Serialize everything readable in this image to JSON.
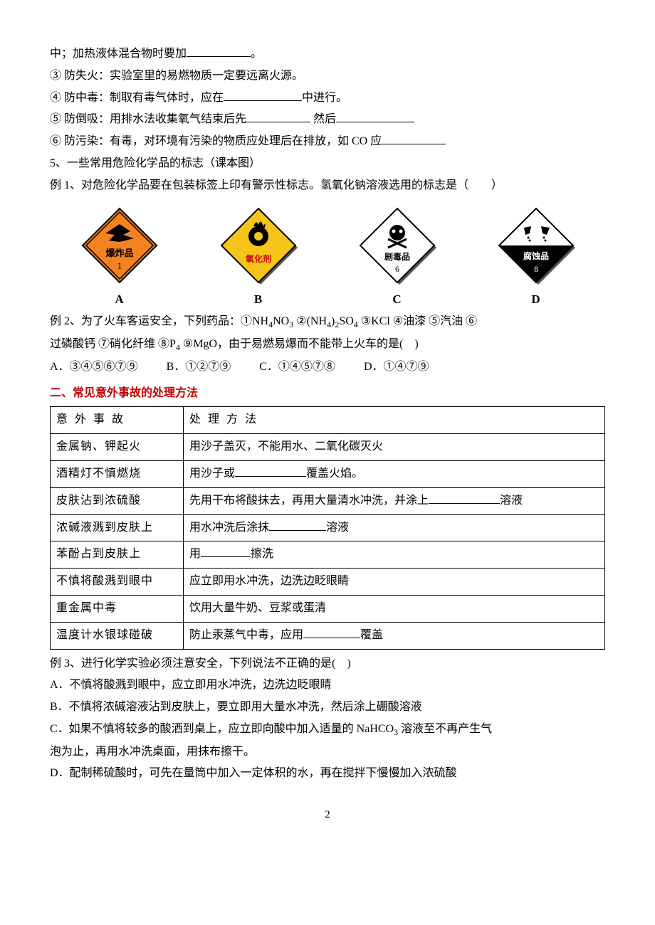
{
  "lines": {
    "l1": "中；加热液体混合物时要加",
    "l1b": "。",
    "l2": "③ 防失火：实验室里的易燃物质一定要远离火源。",
    "l3a": "④ 防中毒：制取有毒气体时，应在",
    "l3b": "中进行。",
    "l4a": "⑤ 防倒吸：用排水法收集氧气结束后先",
    "l4b": " 然后",
    "l5a": "⑥ 防污染：有毒，对环境有污染的物质应处理后在排放，如 CO 应",
    "l6": "5、一些常用危险化学品的标志（课本图）",
    "ex1": "例 1、对危险化学品要在包装标签上印有警示性标志。氢氧化钠溶液选用的标志是（　　）",
    "ex2a": "例 2、为了火车客运安全，下列药品：①NH",
    "ex2b": "NO",
    "ex2c": " ②(NH",
    "ex2d": ")",
    "ex2e": "SO",
    "ex2f": " ③KCl ④油漆  ⑤汽油  ⑥",
    "ex2line2": "过磷酸钙  ⑦硝化纤维  ⑧P",
    "ex2line2b": " ⑨MgO，由于易燃易爆而不能带上火车的是(　)",
    "optA": "A．③④⑤⑥⑦⑨",
    "optB": "B．①②⑦⑨",
    "optC": "C．①④⑤⑦⑧",
    "optD": "D．①④⑦⑨",
    "heading2": "二、常见意外事故的处理方法",
    "ex3": "例 3、进行化学实验必须注意安全，下列说法不正确的是(　)",
    "ex3A": "A．不慎将酸溅到眼中，应立即用水冲洗，边洗边眨眼睛",
    "ex3B": "B．不慎将浓碱溶液沾到皮肤上，要立即用大量水冲洗，然后涂上硼酸溶液",
    "ex3C1": "C．如果不慎将较多的酸洒到桌上，应立即向酸中加入适量的 NaHCO",
    "ex3C1b": " 溶液至不再产生气",
    "ex3C2": "泡为止，再用水冲洗桌面，用抹布擦干。",
    "ex3D": "D．配制稀硫酸时，可先在量筒中加入一定体积的水，再在搅拌下慢慢加入浓硫酸"
  },
  "signs": {
    "labelA": "A",
    "labelB": "B",
    "labelC": "C",
    "labelD": "D",
    "a_text1": "爆炸品",
    "a_text2": "1",
    "b_text": "氧化剂",
    "c_text1": "剧毒品",
    "c_text2": "6",
    "d_text1": "腐蚀品",
    "d_text2": "8",
    "colors": {
      "a_fill": "#f58220",
      "b_fill": "#f5c518",
      "c_fill": "#ffffff",
      "d_top": "#ffffff",
      "d_bottom": "#000000",
      "border": "#000000",
      "shadow": "#555555"
    }
  },
  "table": {
    "header": [
      "意 外 事 故",
      "处 理 方 法"
    ],
    "rows": [
      [
        "金属钠、钾起火",
        "用沙子盖灭，不能用水、二氧化碳灭火"
      ],
      [
        "酒精灯不慎燃烧",
        {
          "pre": "用沙子或",
          "blank": 100,
          "post": "覆盖火焰。"
        }
      ],
      [
        "皮肤沾到浓硫酸",
        {
          "pre": "先用干布将酸抹去，再用大量清水冲洗，并涂上",
          "blank": 100,
          "post": "溶液"
        }
      ],
      [
        "浓碱液溅到皮肤上",
        {
          "pre": "用水冲洗后涂抹",
          "blank": 80,
          "post": "溶液"
        }
      ],
      [
        "苯酚占到皮肤上",
        {
          "pre": "用",
          "blank": 70,
          "post": "擦洗"
        }
      ],
      [
        "不慎将酸溅到眼中",
        "应立即用水冲洗，边洗边眨眼睛"
      ],
      [
        "重金属中毒",
        "饮用大量牛奶、豆浆或蛋清"
      ],
      [
        "温度计水银球碰破",
        {
          "pre": "防止汞蒸气中毒，应用",
          "blank": 80,
          "post": "覆盖"
        }
      ]
    ]
  },
  "pageNumber": "2"
}
